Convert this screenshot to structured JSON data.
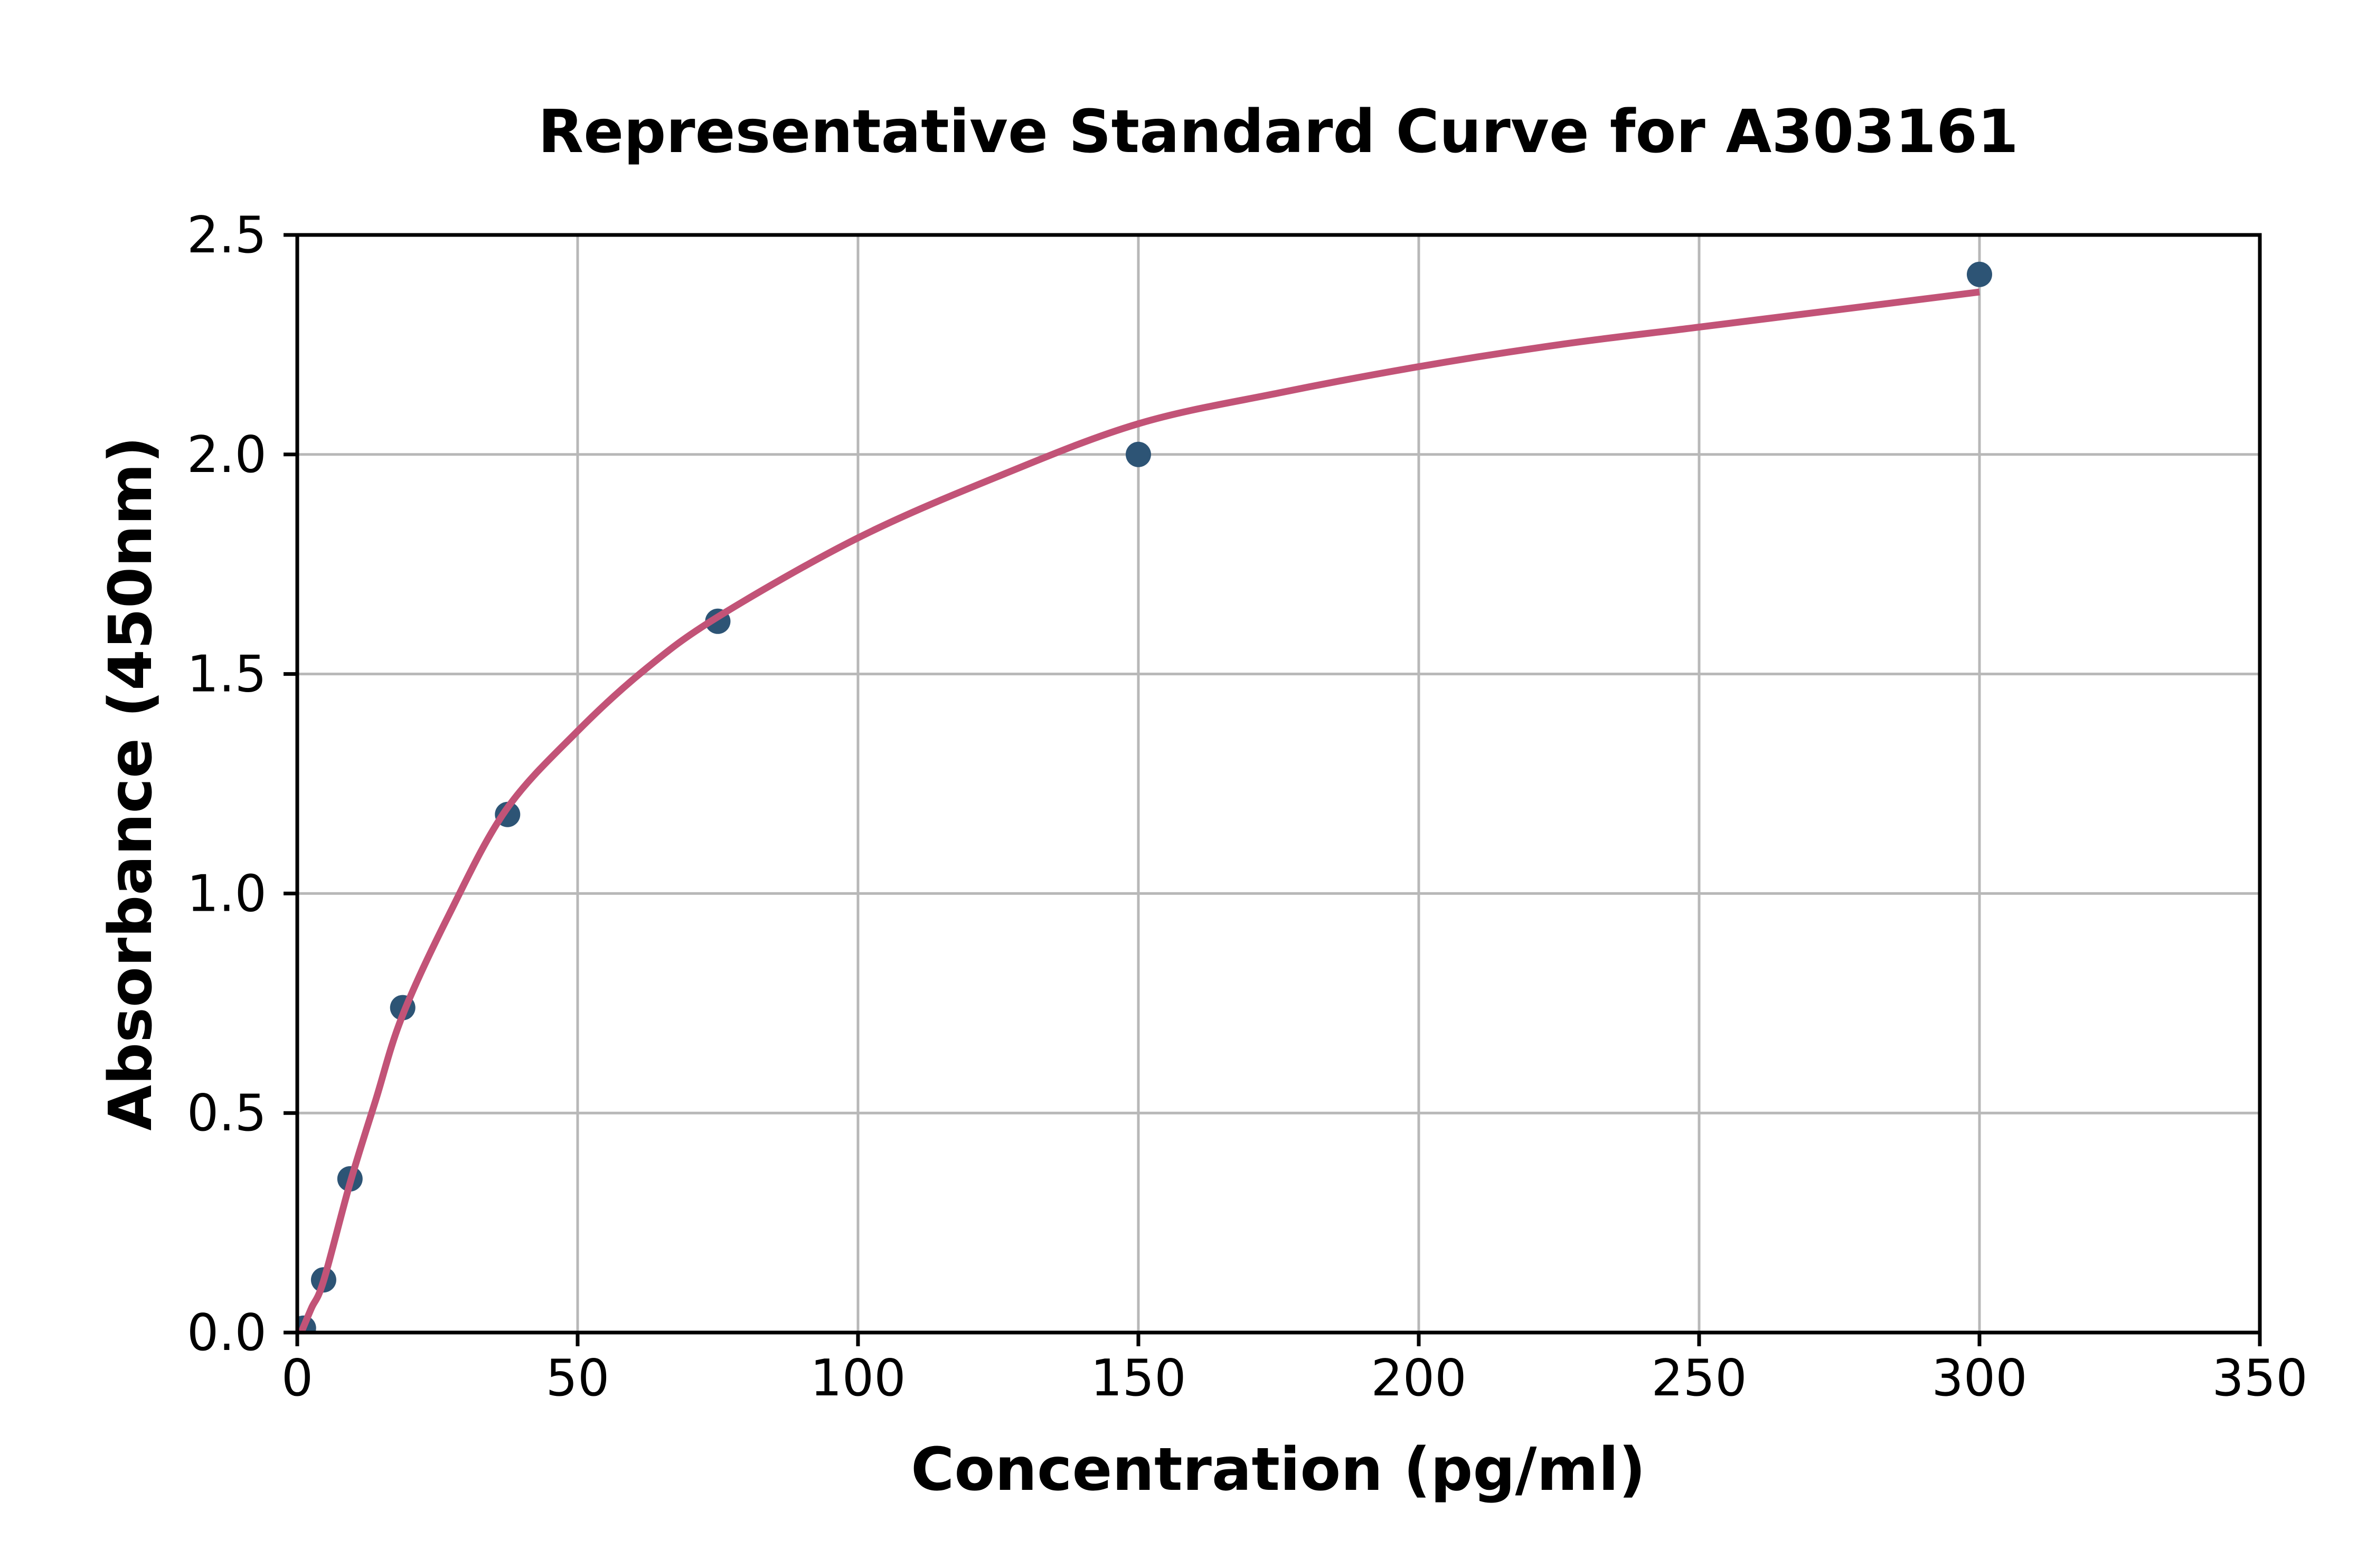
{
  "chart_data": {
    "type": "scatter",
    "title": "Representative Standard Curve for A303161",
    "xlabel": "Concentration (pg/ml)",
    "ylabel": "Absorbance (450nm)",
    "xlim": [
      0,
      350
    ],
    "ylim": [
      0,
      2.5
    ],
    "grid": true,
    "legend": false,
    "background": "#ffffff",
    "grid_color": "#b8b8b8",
    "axis_color": "#000000",
    "xticks": [
      {
        "value": 0,
        "label": "0"
      },
      {
        "value": 50,
        "label": "50"
      },
      {
        "value": 100,
        "label": "100"
      },
      {
        "value": 150,
        "label": "150"
      },
      {
        "value": 200,
        "label": "200"
      },
      {
        "value": 250,
        "label": "250"
      },
      {
        "value": 300,
        "label": "300"
      },
      {
        "value": 350,
        "label": "350"
      }
    ],
    "yticks": [
      {
        "value": 0.0,
        "label": "0.0"
      },
      {
        "value": 0.5,
        "label": "0.5"
      },
      {
        "value": 1.0,
        "label": "1.0"
      },
      {
        "value": 1.5,
        "label": "1.5"
      },
      {
        "value": 2.0,
        "label": "2.0"
      },
      {
        "value": 2.5,
        "label": "2.5"
      }
    ],
    "series": [
      {
        "name": "standard-points",
        "type": "scatter",
        "color": "#2d5475",
        "points": [
          [
            1.1,
            0.01
          ],
          [
            4.7,
            0.12
          ],
          [
            9.4,
            0.35
          ],
          [
            18.8,
            0.74
          ],
          [
            37.5,
            1.18
          ],
          [
            75,
            1.62
          ],
          [
            150,
            2.0
          ],
          [
            300,
            2.41
          ]
        ]
      },
      {
        "name": "fitted-curve",
        "type": "line",
        "color": "#c25377",
        "points": [
          [
            0.7,
            0.0
          ],
          [
            2.5,
            0.055
          ],
          [
            4.7,
            0.118
          ],
          [
            9.4,
            0.34
          ],
          [
            14,
            0.53
          ],
          [
            18.7,
            0.72
          ],
          [
            27,
            0.95
          ],
          [
            37.2,
            1.19
          ],
          [
            50,
            1.37
          ],
          [
            62,
            1.51
          ],
          [
            75,
            1.63
          ],
          [
            100,
            1.81
          ],
          [
            125,
            1.95
          ],
          [
            150,
            2.07
          ],
          [
            175,
            2.14
          ],
          [
            200,
            2.2
          ],
          [
            225,
            2.25
          ],
          [
            250,
            2.29
          ],
          [
            275,
            2.33
          ],
          [
            300,
            2.37
          ]
        ]
      }
    ]
  }
}
